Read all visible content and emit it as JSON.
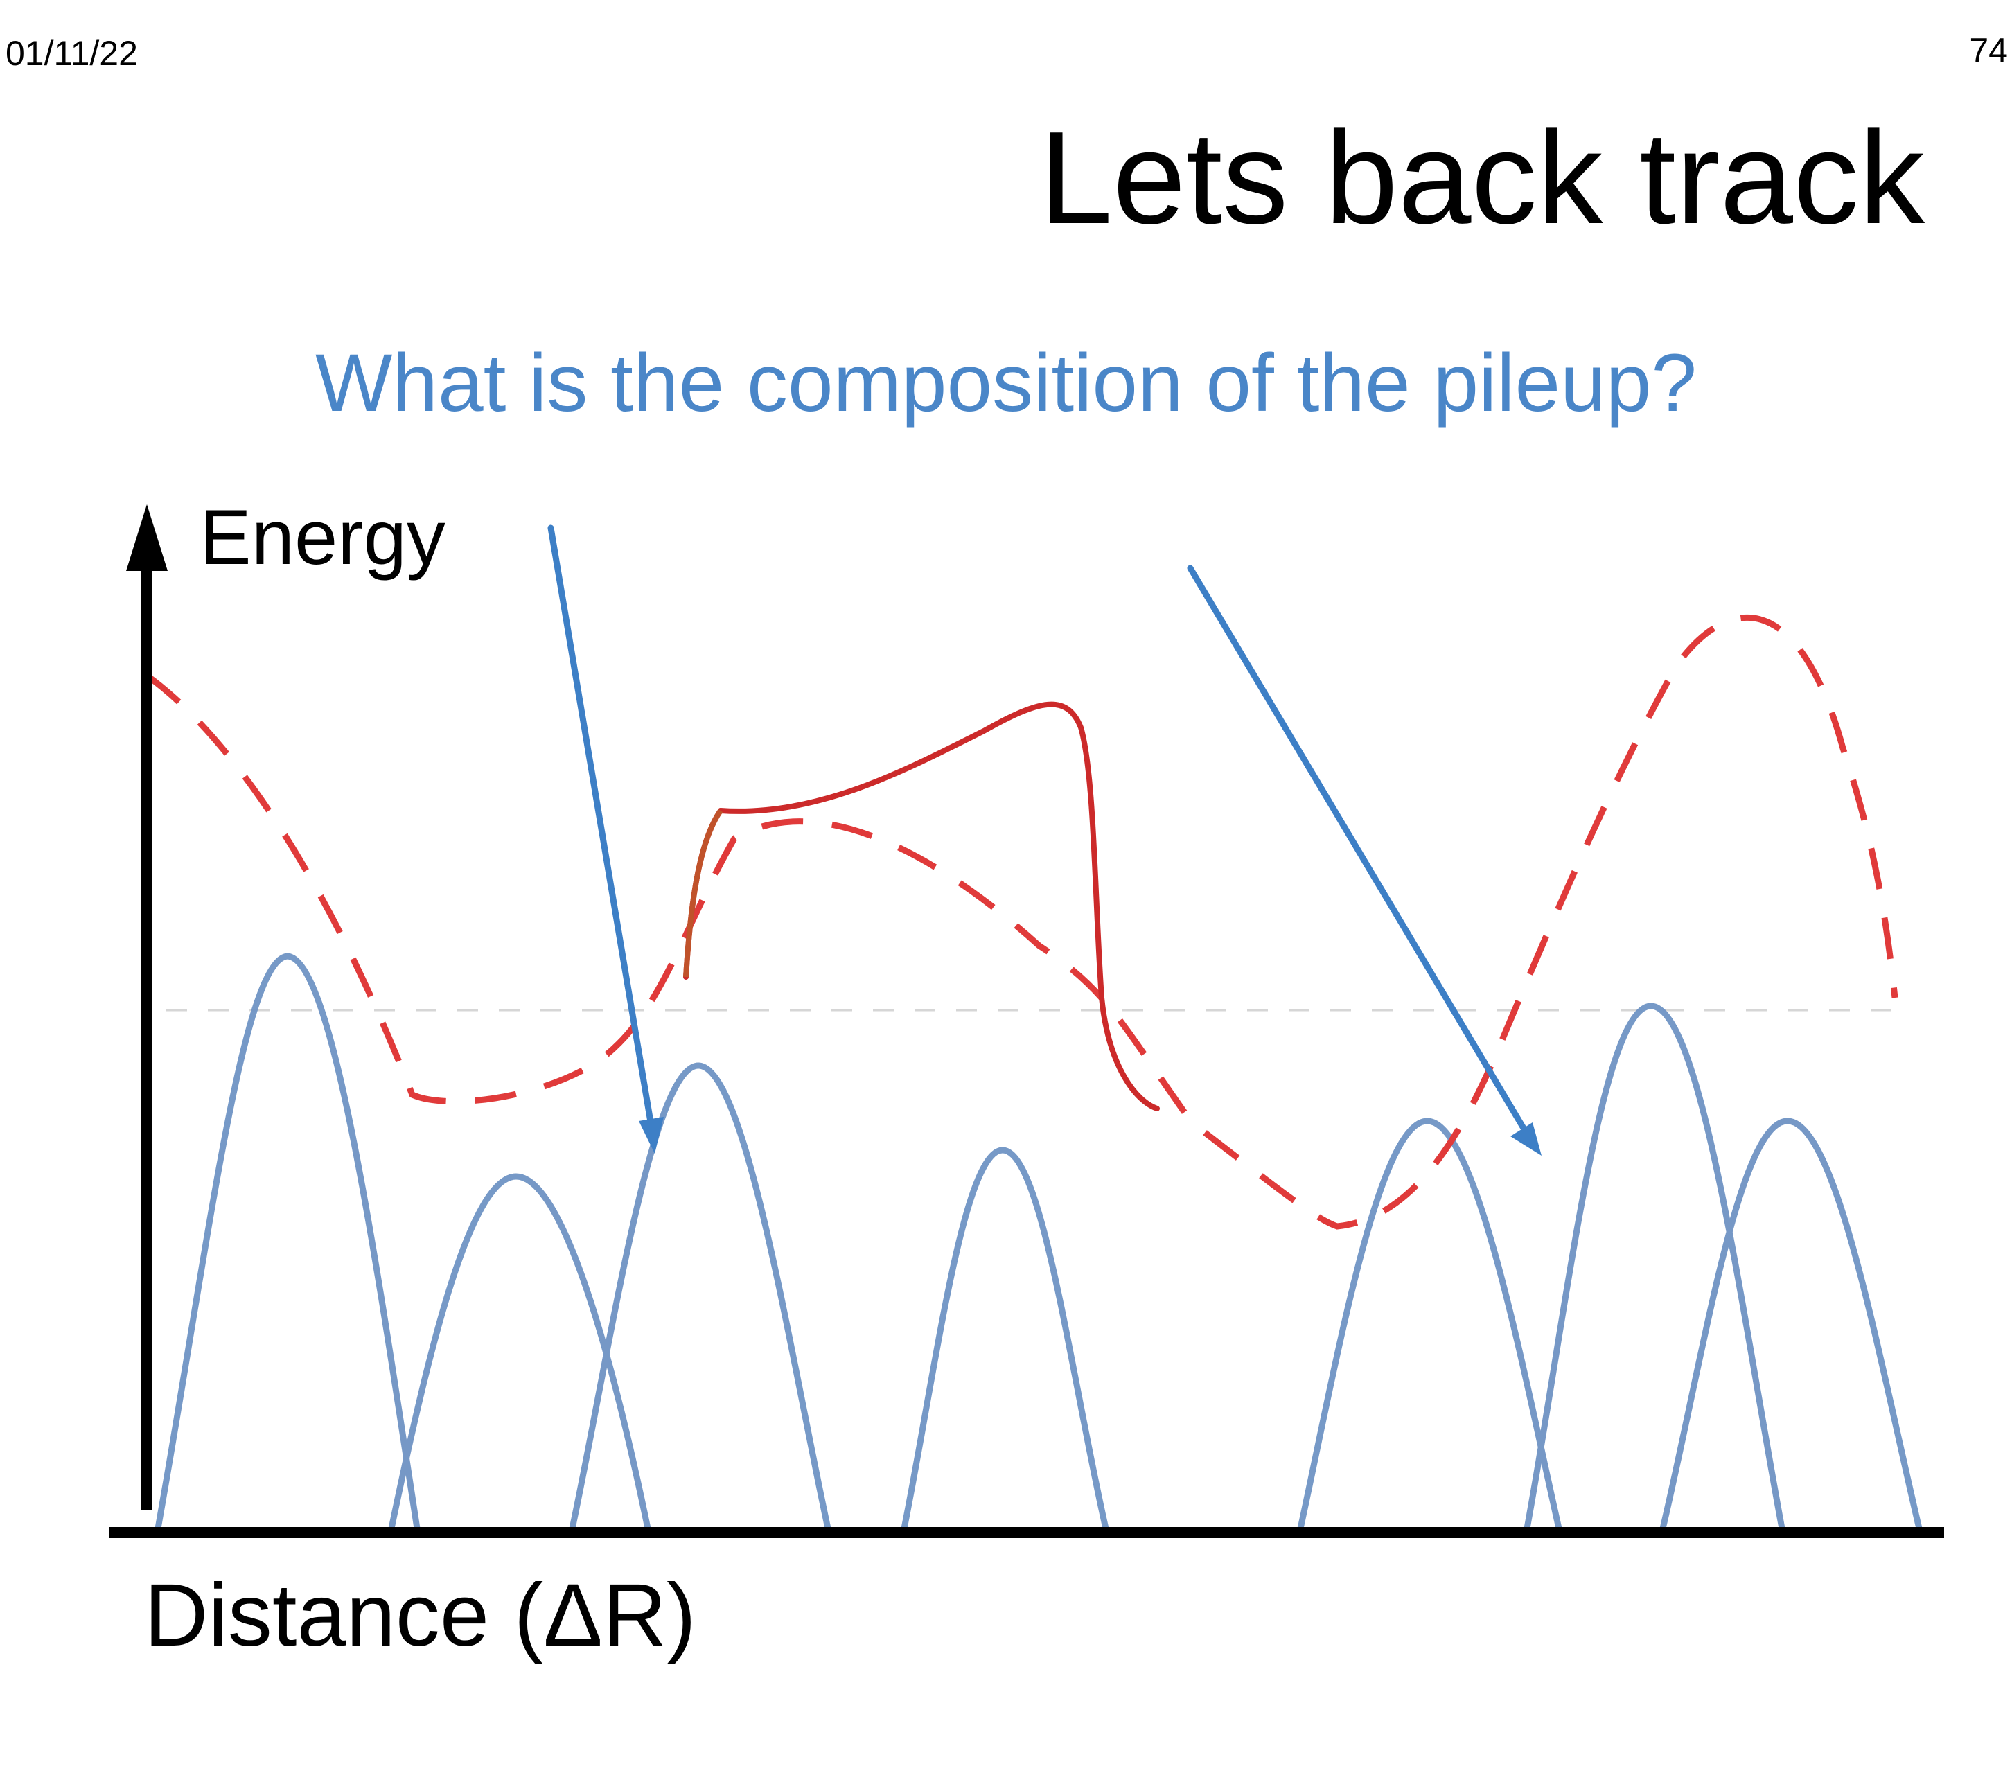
{
  "slide": {
    "date": "01/11/22",
    "page_number": "74",
    "title": "Lets back track",
    "subtitle": "What is the composition of the pileup?"
  },
  "diagram": {
    "y_axis_label": "Energy",
    "x_axis_label": "Distance (ΔR)"
  },
  "colors": {
    "subtitle": "#4a86c8",
    "peaks": "#6f93c4",
    "dashed_curve": "#e03a3a",
    "solid_curve": "#cc2a2a",
    "arrows": "#3d7fc6",
    "axes": "#000000"
  }
}
